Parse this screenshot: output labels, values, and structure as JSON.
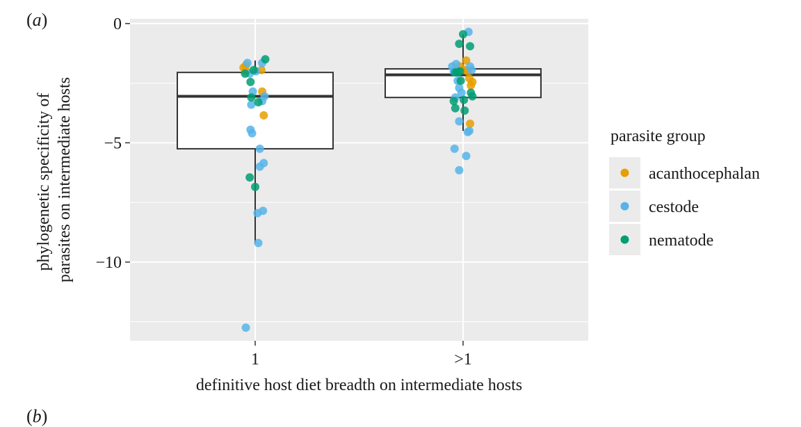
{
  "panel_label": "a",
  "next_panel_label": "b",
  "colors": {
    "panel_background": "#ebebeb",
    "grid": "#ffffff",
    "box_outline": "#333333",
    "box_fill": "#ffffff"
  },
  "chart_data": {
    "type": "box",
    "xlabel": "definitive host diet breadth on intermediate hosts",
    "ylabel_lines": [
      "phylogenetic specificity of",
      "parasites on intermediate hosts"
    ],
    "categories": [
      "1",
      ">1"
    ],
    "ylim": [
      -13.3,
      0.2
    ],
    "yticks": [
      0,
      -5,
      -10
    ],
    "ytick_labels": [
      "0",
      "−5",
      "−10"
    ],
    "grid": true,
    "legend": {
      "title": "parasite group",
      "placement": "right",
      "entries": [
        {
          "label": "acanthocephalan",
          "color": "#E69F00"
        },
        {
          "label": "cestode",
          "color": "#56B4E9"
        },
        {
          "label": "nematode",
          "color": "#009E73"
        }
      ]
    },
    "boxes": [
      {
        "category": "1",
        "q1": -5.25,
        "median": -3.05,
        "q3": -2.05,
        "whisker_low": -9.2,
        "whisker_high": -1.55
      },
      {
        "category": ">1",
        "q1": -3.1,
        "median": -2.15,
        "q3": -1.9,
        "whisker_low": -4.5,
        "whisker_high": -0.45
      }
    ],
    "points": [
      {
        "category": "1",
        "jitter": -0.15,
        "y": -1.85,
        "group": "acanthocephalan"
      },
      {
        "category": "1",
        "jitter": -0.12,
        "y": -1.75,
        "group": "acanthocephalan"
      },
      {
        "category": "1",
        "jitter": -0.12,
        "y": -2.0,
        "group": "acanthocephalan"
      },
      {
        "category": "1",
        "jitter": 0.08,
        "y": -1.95,
        "group": "acanthocephalan"
      },
      {
        "category": "1",
        "jitter": 0.09,
        "y": -2.85,
        "group": "acanthocephalan"
      },
      {
        "category": "1",
        "jitter": 0.11,
        "y": -3.85,
        "group": "acanthocephalan"
      },
      {
        "category": "1",
        "jitter": -0.1,
        "y": -1.65,
        "group": "cestode"
      },
      {
        "category": "1",
        "jitter": -0.07,
        "y": -2.1,
        "group": "cestode"
      },
      {
        "category": "1",
        "jitter": -0.03,
        "y": -2.85,
        "group": "cestode"
      },
      {
        "category": "1",
        "jitter": -0.05,
        "y": -3.4,
        "group": "cestode"
      },
      {
        "category": "1",
        "jitter": 0.01,
        "y": -2.0,
        "group": "cestode"
      },
      {
        "category": "1",
        "jitter": 0.09,
        "y": -1.65,
        "group": "cestode"
      },
      {
        "category": "1",
        "jitter": 0.09,
        "y": -3.25,
        "group": "cestode"
      },
      {
        "category": "1",
        "jitter": 0.12,
        "y": -3.05,
        "group": "cestode"
      },
      {
        "category": "1",
        "jitter": -0.06,
        "y": -4.45,
        "group": "cestode"
      },
      {
        "category": "1",
        "jitter": -0.04,
        "y": -4.6,
        "group": "cestode"
      },
      {
        "category": "1",
        "jitter": 0.06,
        "y": -5.25,
        "group": "cestode"
      },
      {
        "category": "1",
        "jitter": 0.06,
        "y": -6.0,
        "group": "cestode"
      },
      {
        "category": "1",
        "jitter": 0.11,
        "y": -5.85,
        "group": "cestode"
      },
      {
        "category": "1",
        "jitter": 0.03,
        "y": -7.95,
        "group": "cestode"
      },
      {
        "category": "1",
        "jitter": 0.1,
        "y": -7.85,
        "group": "cestode"
      },
      {
        "category": "1",
        "jitter": 0.04,
        "y": -9.2,
        "group": "cestode"
      },
      {
        "category": "1",
        "jitter": -0.12,
        "y": -12.75,
        "group": "cestode"
      },
      {
        "category": "1",
        "jitter": -0.13,
        "y": -2.1,
        "group": "nematode"
      },
      {
        "category": "1",
        "jitter": 0.13,
        "y": -1.5,
        "group": "nematode"
      },
      {
        "category": "1",
        "jitter": -0.06,
        "y": -2.45,
        "group": "nematode"
      },
      {
        "category": "1",
        "jitter": -0.05,
        "y": -3.1,
        "group": "nematode"
      },
      {
        "category": "1",
        "jitter": 0.04,
        "y": -3.3,
        "group": "nematode"
      },
      {
        "category": "1",
        "jitter": -0.07,
        "y": -6.45,
        "group": "nematode"
      },
      {
        "category": "1",
        "jitter": 0.0,
        "y": -6.85,
        "group": "nematode"
      },
      {
        "category": "1",
        "jitter": -0.02,
        "y": -1.95,
        "group": "nematode"
      },
      {
        "category": ">1",
        "jitter": 0.04,
        "y": -1.55,
        "group": "acanthocephalan"
      },
      {
        "category": ">1",
        "jitter": -0.04,
        "y": -1.8,
        "group": "acanthocephalan"
      },
      {
        "category": ">1",
        "jitter": 0.06,
        "y": -2.0,
        "group": "acanthocephalan"
      },
      {
        "category": ">1",
        "jitter": 0.08,
        "y": -2.3,
        "group": "acanthocephalan"
      },
      {
        "category": ">1",
        "jitter": 0.1,
        "y": -2.6,
        "group": "acanthocephalan"
      },
      {
        "category": ">1",
        "jitter": 0.12,
        "y": -2.45,
        "group": "acanthocephalan"
      },
      {
        "category": ">1",
        "jitter": 0.09,
        "y": -4.2,
        "group": "acanthocephalan"
      },
      {
        "category": ">1",
        "jitter": 0.02,
        "y": -1.95,
        "group": "acanthocephalan"
      },
      {
        "category": ">1",
        "jitter": -0.14,
        "y": -1.8,
        "group": "cestode"
      },
      {
        "category": ">1",
        "jitter": -0.12,
        "y": -2.0,
        "group": "cestode"
      },
      {
        "category": ">1",
        "jitter": -0.09,
        "y": -1.7,
        "group": "cestode"
      },
      {
        "category": ">1",
        "jitter": -0.07,
        "y": -2.4,
        "group": "cestode"
      },
      {
        "category": ">1",
        "jitter": -0.05,
        "y": -2.7,
        "group": "cestode"
      },
      {
        "category": ">1",
        "jitter": -0.02,
        "y": -2.9,
        "group": "cestode"
      },
      {
        "category": ">1",
        "jitter": -0.1,
        "y": -3.1,
        "group": "cestode"
      },
      {
        "category": ">1",
        "jitter": -0.05,
        "y": -4.1,
        "group": "cestode"
      },
      {
        "category": ">1",
        "jitter": 0.06,
        "y": -4.55,
        "group": "cestode"
      },
      {
        "category": ">1",
        "jitter": 0.08,
        "y": -4.5,
        "group": "cestode"
      },
      {
        "category": ">1",
        "jitter": -0.11,
        "y": -5.25,
        "group": "cestode"
      },
      {
        "category": ">1",
        "jitter": 0.04,
        "y": -5.55,
        "group": "cestode"
      },
      {
        "category": ">1",
        "jitter": -0.05,
        "y": -6.15,
        "group": "cestode"
      },
      {
        "category": ">1",
        "jitter": 0.07,
        "y": -0.35,
        "group": "cestode"
      },
      {
        "category": ">1",
        "jitter": 0.09,
        "y": -1.8,
        "group": "cestode"
      },
      {
        "category": ">1",
        "jitter": 0.11,
        "y": -1.95,
        "group": "cestode"
      },
      {
        "category": ">1",
        "jitter": -0.05,
        "y": -0.85,
        "group": "nematode"
      },
      {
        "category": ">1",
        "jitter": 0.0,
        "y": -0.45,
        "group": "nematode"
      },
      {
        "category": ">1",
        "jitter": 0.09,
        "y": -0.95,
        "group": "nematode"
      },
      {
        "category": ">1",
        "jitter": -0.1,
        "y": -2.05,
        "group": "nematode"
      },
      {
        "category": ">1",
        "jitter": -0.07,
        "y": -2.05,
        "group": "nematode"
      },
      {
        "category": ">1",
        "jitter": -0.04,
        "y": -2.0,
        "group": "nematode"
      },
      {
        "category": ">1",
        "jitter": -0.03,
        "y": -2.4,
        "group": "nematode"
      },
      {
        "category": ">1",
        "jitter": -0.12,
        "y": -3.25,
        "group": "nematode"
      },
      {
        "category": ">1",
        "jitter": -0.1,
        "y": -3.55,
        "group": "nematode"
      },
      {
        "category": ">1",
        "jitter": 0.01,
        "y": -3.2,
        "group": "nematode"
      },
      {
        "category": ">1",
        "jitter": 0.02,
        "y": -3.65,
        "group": "nematode"
      },
      {
        "category": ">1",
        "jitter": 0.1,
        "y": -2.9,
        "group": "nematode"
      },
      {
        "category": ">1",
        "jitter": 0.12,
        "y": -3.05,
        "group": "nematode"
      }
    ]
  }
}
